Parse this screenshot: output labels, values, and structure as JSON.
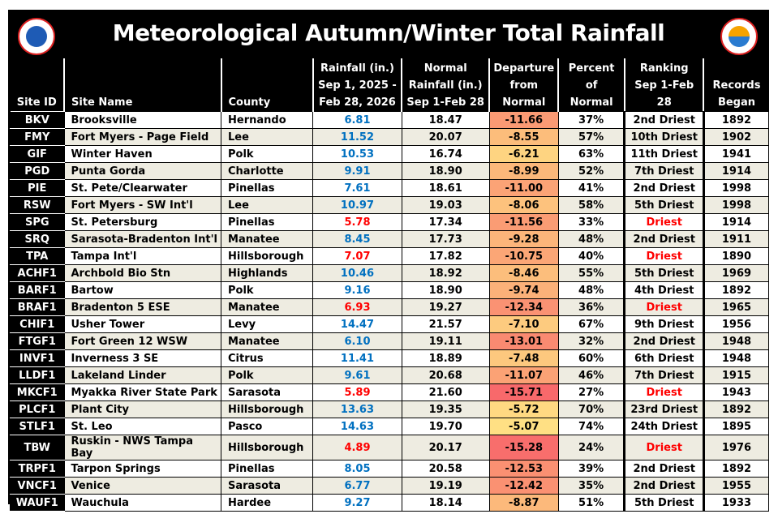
{
  "title": "Meteorological Autumn/Winter Total Rainfall",
  "logos": {
    "left": "NATIONAL WEATHER SERVICE",
    "right": "NATIONAL WEATHER SERVICE TAMPA BAY"
  },
  "colors": {
    "rain_normal": "#0070C0",
    "rain_driest": "#FF0000",
    "departure_min": "#F8696B",
    "departure_mid": "#FBAA77",
    "departure_max": "#FFE084",
    "row_alt": "#EEECE1"
  },
  "headers": [
    "Site ID",
    "Site Name",
    "County",
    "Rainfall (in.) Sep 1, 2025 - Feb 28, 2026",
    "Normal Rainfall (in.) Sep 1-Feb 28",
    "Departure from Normal",
    "Percent of Normal",
    "Ranking Sep 1-Feb 28",
    "Records Began"
  ],
  "rows": [
    [
      "BKV",
      "Brooksville",
      "Hernando",
      "6.81",
      "18.47",
      "-11.66",
      "37%",
      "2nd Driest",
      "1892"
    ],
    [
      "FMY",
      "Fort Myers - Page Field",
      "Lee",
      "11.52",
      "20.07",
      "-8.55",
      "57%",
      "10th Driest",
      "1902"
    ],
    [
      "GIF",
      "Winter Haven",
      "Polk",
      "10.53",
      "16.74",
      "-6.21",
      "63%",
      "11th Driest",
      "1941"
    ],
    [
      "PGD",
      "Punta Gorda",
      "Charlotte",
      "9.91",
      "18.90",
      "-8.99",
      "52%",
      "7th Driest",
      "1914"
    ],
    [
      "PIE",
      "St. Pete/Clearwater",
      "Pinellas",
      "7.61",
      "18.61",
      "-11.00",
      "41%",
      "2nd Driest",
      "1998"
    ],
    [
      "RSW",
      "Fort Myers - SW Int'l",
      "Lee",
      "10.97",
      "19.03",
      "-8.06",
      "58%",
      "5th Driest",
      "1998"
    ],
    [
      "SPG",
      "St. Petersburg",
      "Pinellas",
      "5.78",
      "17.34",
      "-11.56",
      "33%",
      "Driest",
      "1914"
    ],
    [
      "SRQ",
      "Sarasota-Bradenton Int'l",
      "Manatee",
      "8.45",
      "17.73",
      "-9.28",
      "48%",
      "2nd Driest",
      "1911"
    ],
    [
      "TPA",
      "Tampa Int'l",
      "Hillsborough",
      "7.07",
      "17.82",
      "-10.75",
      "40%",
      "Driest",
      "1890"
    ],
    [
      "ACHF1",
      "Archbold Bio Stn",
      "Highlands",
      "10.46",
      "18.92",
      "-8.46",
      "55%",
      "5th Driest",
      "1969"
    ],
    [
      "BARF1",
      "Bartow",
      "Polk",
      "9.16",
      "18.90",
      "-9.74",
      "48%",
      "4th Driest",
      "1892"
    ],
    [
      "BRAF1",
      "Bradenton 5 ESE",
      "Manatee",
      "6.93",
      "19.27",
      "-12.34",
      "36%",
      "Driest",
      "1965"
    ],
    [
      "CHIF1",
      "Usher Tower",
      "Levy",
      "14.47",
      "21.57",
      "-7.10",
      "67%",
      "9th Driest",
      "1956"
    ],
    [
      "FTGF1",
      "Fort Green 12 WSW",
      "Manatee",
      "6.10",
      "19.11",
      "-13.01",
      "32%",
      "2nd Driest",
      "1948"
    ],
    [
      "INVF1",
      "Inverness 3 SE",
      "Citrus",
      "11.41",
      "18.89",
      "-7.48",
      "60%",
      "6th Driest",
      "1948"
    ],
    [
      "LLDF1",
      "Lakeland Linder",
      "Polk",
      "9.61",
      "20.68",
      "-11.07",
      "46%",
      "7th Driest",
      "1915"
    ],
    [
      "MKCF1",
      "Myakka River State Park",
      "Sarasota",
      "5.89",
      "21.60",
      "-15.71",
      "27%",
      "Driest",
      "1943"
    ],
    [
      "PLCF1",
      "Plant City",
      "Hillsborough",
      "13.63",
      "19.35",
      "-5.72",
      "70%",
      "23rd Driest",
      "1892"
    ],
    [
      "STLF1",
      "St. Leo",
      "Pasco",
      "14.63",
      "19.70",
      "-5.07",
      "74%",
      "24th Driest",
      "1895"
    ],
    [
      "TBW",
      "Ruskin - NWS Tampa Bay",
      "Hillsborough",
      "4.89",
      "20.17",
      "-15.28",
      "24%",
      "Driest",
      "1976"
    ],
    [
      "TRPF1",
      "Tarpon Springs",
      "Pinellas",
      "8.05",
      "20.58",
      "-12.53",
      "39%",
      "2nd Driest",
      "1892"
    ],
    [
      "VNCF1",
      "Venice",
      "Sarasota",
      "6.77",
      "19.19",
      "-12.42",
      "35%",
      "2nd Driest",
      "1955"
    ],
    [
      "WAUF1",
      "Wauchula",
      "Hardee",
      "9.27",
      "18.14",
      "-8.87",
      "51%",
      "5th Driest",
      "1933"
    ]
  ]
}
